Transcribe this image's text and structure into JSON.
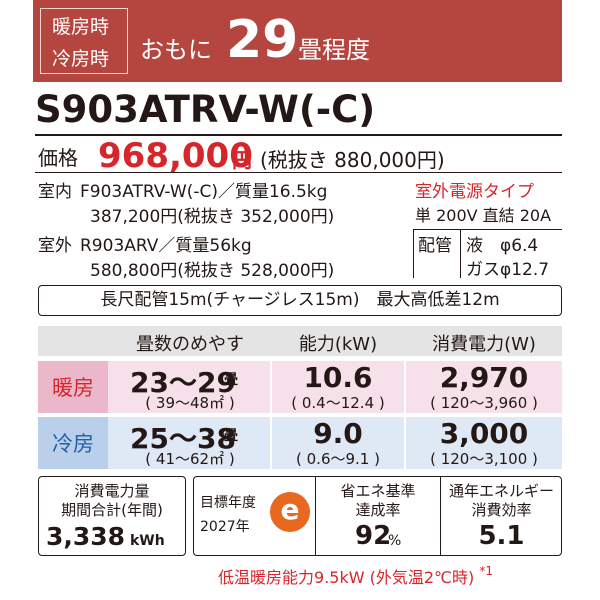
{
  "header": {
    "season_heat": "暖房時",
    "season_cool": "冷房時",
    "prefix": "おもに",
    "tatami": "29",
    "suffix": "畳程度"
  },
  "model": "S903ATRV-W(-C)",
  "price": {
    "label": "価格",
    "amount": "968,000",
    "unit": "円",
    "tax_excluded": "(税抜き 880,000円)"
  },
  "units": [
    {
      "label": "室内",
      "spec": "F903ATRV-W(-C)／質量16.5kg",
      "price": "387,200円(税抜き 352,000円)"
    },
    {
      "label": "室外",
      "spec": "R903ARV／質量56kg",
      "price": "580,800円(税抜き 528,000円)"
    }
  ],
  "power": {
    "title": "室外電源タイプ",
    "spec": "単 200V 直結 20A"
  },
  "piping": {
    "label": "配管",
    "liquid": "液　φ6.4",
    "gas": "ガスφ12.7",
    "note": "長尺配管15m(チャージレス15m)　最大高低差12m"
  },
  "table": {
    "headers": [
      "畳数のめやす",
      "能力(kW)",
      "消費電力(W)"
    ],
    "rows": [
      {
        "mode": "暖房",
        "tatami": "23～29",
        "tatami_unit": "畳",
        "area": "( 39～48㎡ )",
        "capacity": "10.6",
        "capacity_range": "( 0.4～12.4 )",
        "power": "2,970",
        "power_range": "( 120～3,960 )"
      },
      {
        "mode": "冷房",
        "tatami": "25～38",
        "tatami_unit": "畳",
        "area": "( 41～62㎡ )",
        "capacity": "9.0",
        "capacity_range": "( 0.6～9.1 )",
        "power": "3,000",
        "power_range": "( 120～3,100 )"
      }
    ]
  },
  "energy": {
    "title_1": "消費電力量",
    "title_2": "期間合計(年間)",
    "value": "3,338",
    "unit": "kWh"
  },
  "target": {
    "label_1": "目標年度",
    "label_2": "2027年",
    "logo": "e"
  },
  "achievement": {
    "title_1": "省エネ基準",
    "title_2": "達成率",
    "value": "92",
    "unit": "%"
  },
  "efficiency": {
    "title_1": "通年エネルギー",
    "title_2": "消費効率",
    "value": "5.1"
  },
  "footnote": {
    "text": "低温暖房能力9.5kW (外気温2℃時)",
    "mark": "*1"
  }
}
